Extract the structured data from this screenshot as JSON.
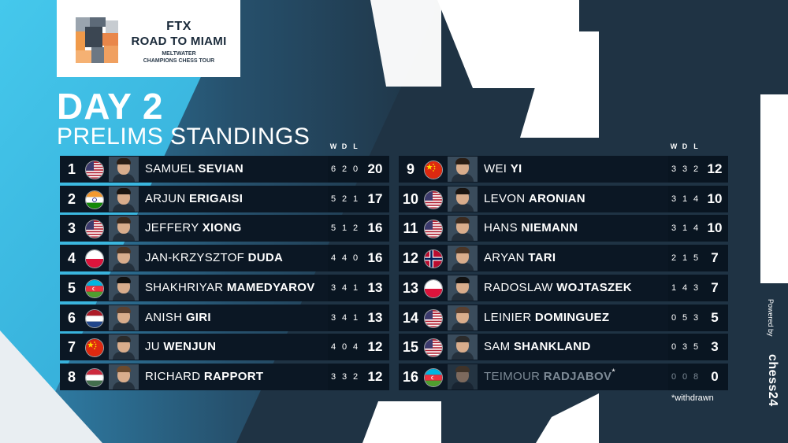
{
  "logo": {
    "ftx": "FTX",
    "road": "ROAD TO MIAMI",
    "sub1": "MELTWATER",
    "sub2": "CHAMPIONS CHESS TOUR"
  },
  "title": "DAY 2",
  "subtitle": "PRELIMS STANDINGS",
  "headers": {
    "w": "W",
    "d": "D",
    "l": "L"
  },
  "left_rows": [
    {
      "rank": "1",
      "flag": "usa",
      "first": "SAMUEL",
      "last": "SEVIAN",
      "w": "6",
      "d": "2",
      "l": "0",
      "pts": "20"
    },
    {
      "rank": "2",
      "flag": "india",
      "first": "ARJUN",
      "last": "ERIGAISI",
      "w": "5",
      "d": "2",
      "l": "1",
      "pts": "17"
    },
    {
      "rank": "3",
      "flag": "usa",
      "first": "JEFFERY",
      "last": "XIONG",
      "w": "5",
      "d": "1",
      "l": "2",
      "pts": "16"
    },
    {
      "rank": "4",
      "flag": "poland",
      "first": "JAN-KRZYSZTOF",
      "last": "DUDA",
      "w": "4",
      "d": "4",
      "l": "0",
      "pts": "16"
    },
    {
      "rank": "5",
      "flag": "azerbaijan",
      "first": "SHAKHRIYAR",
      "last": "MAMEDYAROV",
      "w": "3",
      "d": "4",
      "l": "1",
      "pts": "13"
    },
    {
      "rank": "6",
      "flag": "netherlands",
      "first": "ANISH",
      "last": "GIRI",
      "w": "3",
      "d": "4",
      "l": "1",
      "pts": "13"
    },
    {
      "rank": "7",
      "flag": "china",
      "first": "JU",
      "last": "WENJUN",
      "w": "4",
      "d": "0",
      "l": "4",
      "pts": "12"
    },
    {
      "rank": "8",
      "flag": "hungary",
      "first": "RICHARD",
      "last": "RAPPORT",
      "w": "3",
      "d": "3",
      "l": "2",
      "pts": "12"
    }
  ],
  "right_rows": [
    {
      "rank": "9",
      "flag": "china",
      "first": "WEI",
      "last": "YI",
      "w": "3",
      "d": "3",
      "l": "2",
      "pts": "12"
    },
    {
      "rank": "10",
      "flag": "usa",
      "first": "LEVON",
      "last": "ARONIAN",
      "w": "3",
      "d": "1",
      "l": "4",
      "pts": "10"
    },
    {
      "rank": "11",
      "flag": "usa",
      "first": "HANS",
      "last": "NIEMANN",
      "w": "3",
      "d": "1",
      "l": "4",
      "pts": "10"
    },
    {
      "rank": "12",
      "flag": "norway",
      "first": "ARYAN",
      "last": "TARI",
      "w": "2",
      "d": "1",
      "l": "5",
      "pts": "7"
    },
    {
      "rank": "13",
      "flag": "poland",
      "first": "RADOSLAW",
      "last": "WOJTASZEK",
      "w": "1",
      "d": "4",
      "l": "3",
      "pts": "7"
    },
    {
      "rank": "14",
      "flag": "usa",
      "first": "LEINIER",
      "last": "DOMINGUEZ",
      "w": "0",
      "d": "5",
      "l": "3",
      "pts": "5"
    },
    {
      "rank": "15",
      "flag": "usa",
      "first": "SAM",
      "last": "SHANKLAND",
      "w": "0",
      "d": "3",
      "l": "5",
      "pts": "3"
    },
    {
      "rank": "16",
      "flag": "azerbaijan",
      "first": "TEIMOUR",
      "last": "RADJABOV",
      "asterisk": "*",
      "w": "0",
      "d": "0",
      "l": "8",
      "pts": "0",
      "withdrawn": true
    }
  ],
  "withdrawn_note": "*withdrawn",
  "powered_by": "Powered by",
  "sponsor": "chess24",
  "colors": {
    "cyan": "#3ec1e6",
    "navy": "#1f3344",
    "row": "#0b1724",
    "stats": "#0a1622"
  }
}
